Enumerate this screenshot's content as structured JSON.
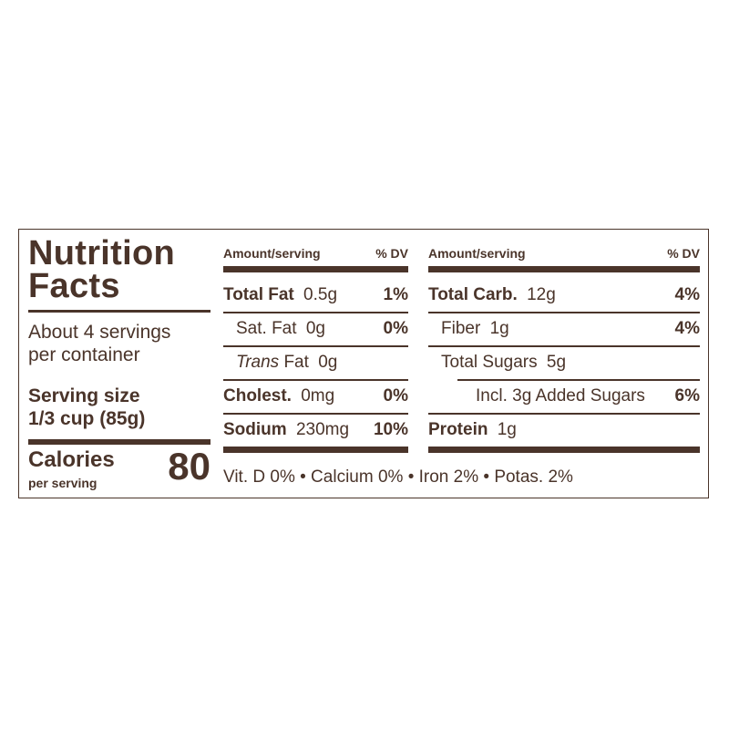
{
  "title": {
    "line1": "Nutrition",
    "line2": "Facts"
  },
  "servings": {
    "line1": "About 4 servings",
    "line2": "per container"
  },
  "serving_size": {
    "label": "Serving size",
    "value": "1/3 cup (85g)"
  },
  "calories": {
    "label": "Calories",
    "sub": "per serving",
    "value": "80"
  },
  "column_headers": {
    "amount": "Amount/serving",
    "dv": "% DV"
  },
  "left_nutrients": {
    "total_fat": {
      "name": "Total Fat",
      "amount": "0.5g",
      "dv": "1%"
    },
    "sat_fat": {
      "name": "Sat. Fat",
      "amount": "0g",
      "dv": "0%"
    },
    "trans_fat": {
      "name_italic": "Trans",
      "name_rest": "Fat",
      "amount": "0g"
    },
    "cholest": {
      "name": "Cholest.",
      "amount": "0mg",
      "dv": "0%"
    },
    "sodium": {
      "name": "Sodium",
      "amount": "230mg",
      "dv": "10%"
    }
  },
  "right_nutrients": {
    "total_carb": {
      "name": "Total Carb.",
      "amount": "12g",
      "dv": "4%"
    },
    "fiber": {
      "name": "Fiber",
      "amount": "1g",
      "dv": "4%"
    },
    "total_sugars": {
      "name": "Total Sugars",
      "amount": "5g"
    },
    "added_sugars": {
      "text": "Incl. 3g Added Sugars",
      "dv": "6%"
    },
    "protein": {
      "name": "Protein",
      "amount": "1g"
    }
  },
  "vitamins": "Vit. D 0% • Calcium 0% • Iron 2% • Potas. 2%",
  "colors": {
    "ink": "#4a342a",
    "background": "#ffffff"
  }
}
